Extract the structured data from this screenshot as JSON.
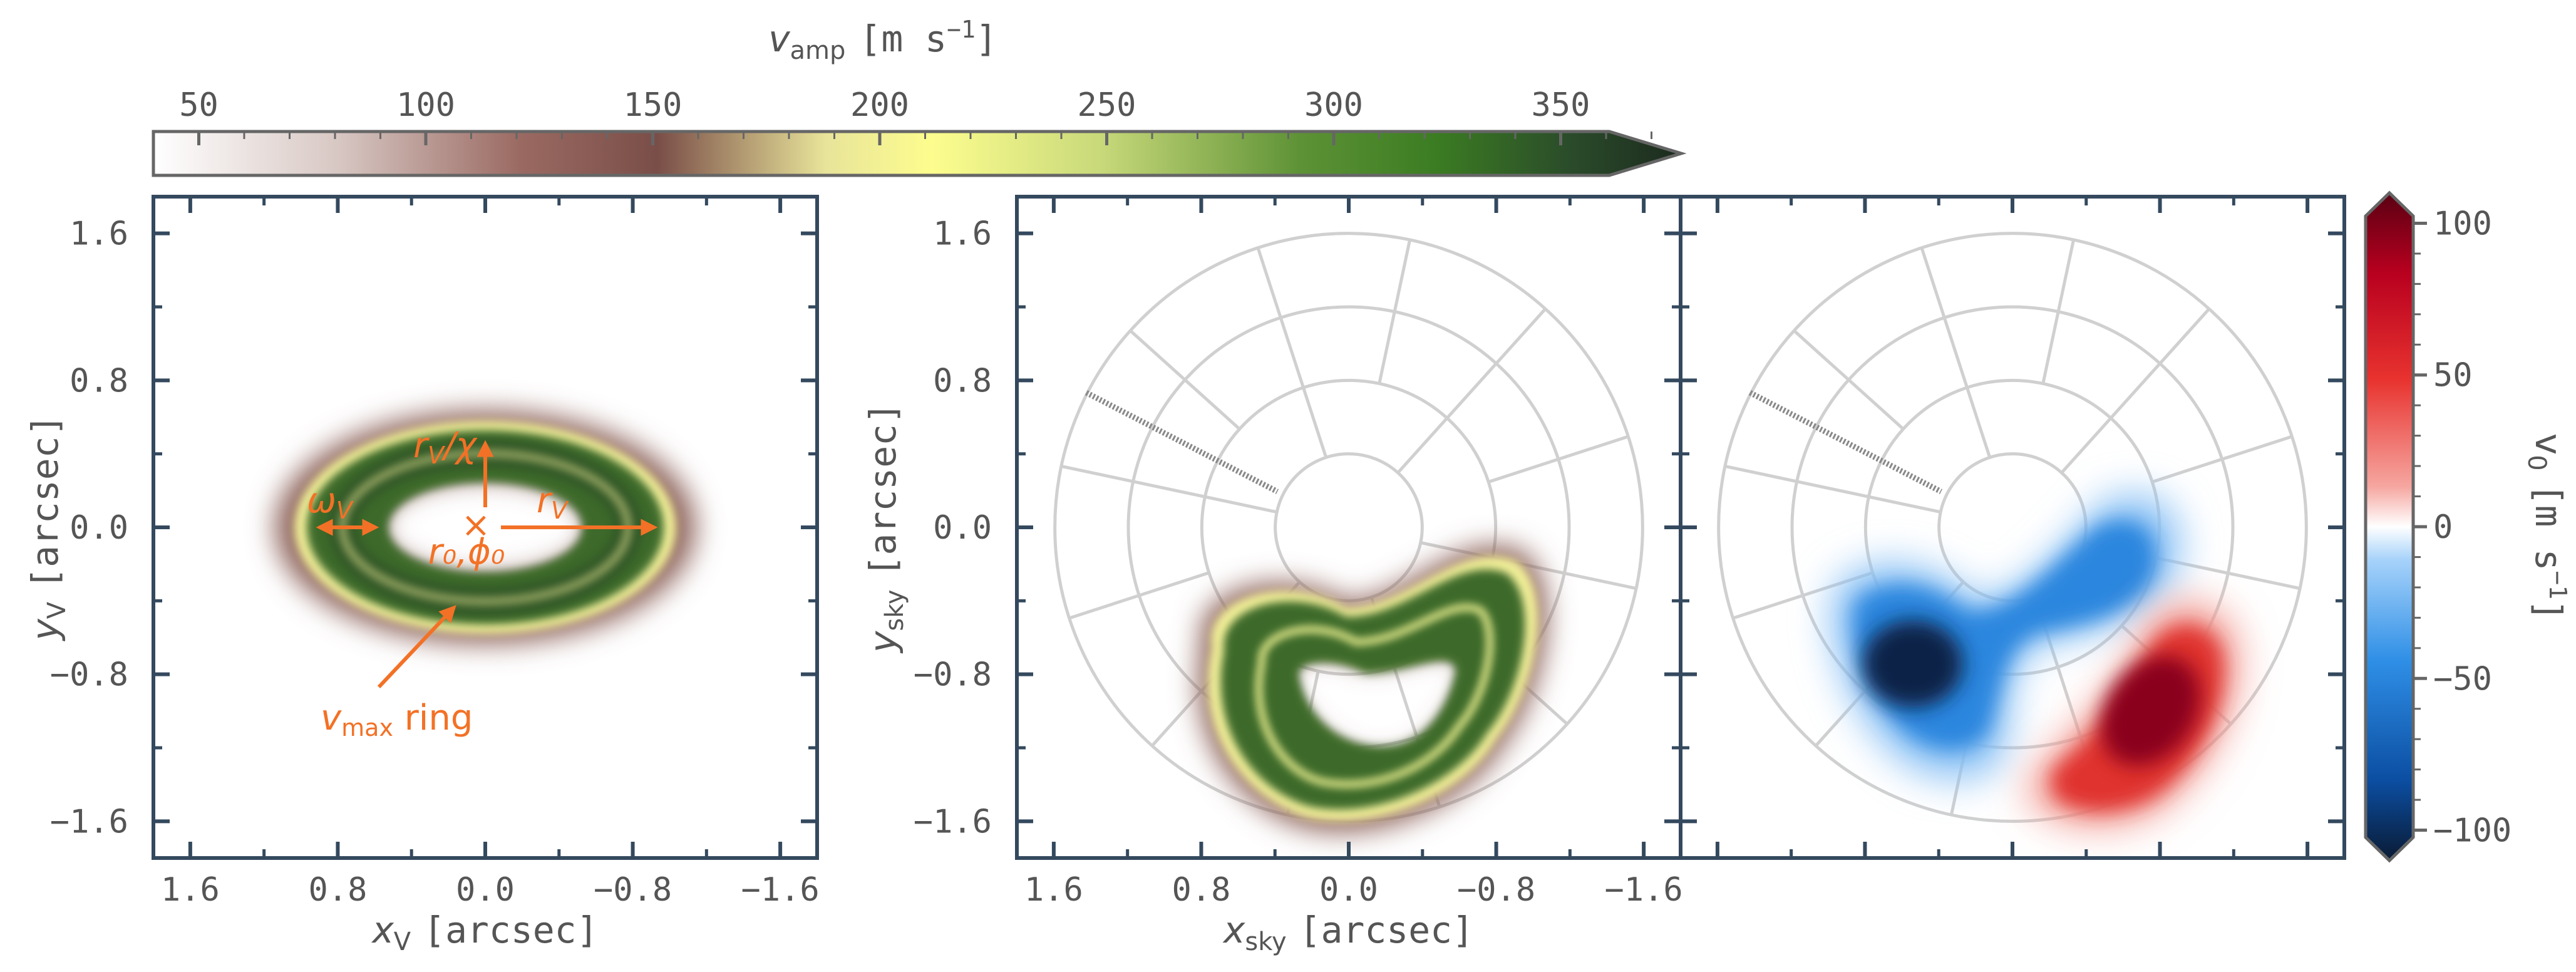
{
  "colors": {
    "frame": "#34495e",
    "tick_text": "#555555",
    "annotation": "#f37126",
    "grid": "#d0d0d0",
    "ring_cmap": [
      "#ffffff",
      "#d8c8c4",
      "#9a6a62",
      "#7a4e48",
      "#f1f0a0",
      "#fdfd8e",
      "#c8d97a",
      "#6a9a3c",
      "#3b7c22",
      "#2a4a2a",
      "#1c2a1e"
    ],
    "div_cmap": [
      "#0a1a33",
      "#0b4ea2",
      "#2f8fe6",
      "#a6d2fa",
      "#ffffff",
      "#f6a6a0",
      "#e8332f",
      "#b8001f",
      "#5a0013"
    ]
  },
  "top_colorbar": {
    "label_sym": "v",
    "label_sub": "amp",
    "label_unit": "[m s",
    "label_unit_exp": "−1",
    "label_unit_close": "]",
    "ticks": [
      "50",
      "100",
      "150",
      "200",
      "250",
      "300",
      "350"
    ]
  },
  "right_colorbar": {
    "label": "v",
    "label_sub": "0",
    "label_unit": "[m s",
    "label_unit_exp": "−1",
    "label_unit_close": "]",
    "ticks": [
      "100",
      "50",
      "0",
      "−50",
      "−100"
    ]
  },
  "panel1": {
    "xlabel_sym": "x",
    "xlabel_sub": "V",
    "xlabel_unit": "[arcsec]",
    "ylabel_sym": "y",
    "ylabel_sub": "V",
    "ylabel_unit": "[arcsec]",
    "xticks": [
      "1.6",
      "0.8",
      "0.0",
      "−0.8",
      "−1.6"
    ],
    "yticks": [
      "1.6",
      "0.8",
      "0.0",
      "−0.8",
      "−1.6"
    ],
    "ann_rv_chi_main": "r",
    "ann_rv_chi_sub": "V",
    "ann_rv_chi_tail": "/χ",
    "ann_omega_main": "ω",
    "ann_omega_sub": "V",
    "ann_rv_main": "r",
    "ann_rv_sub": "V",
    "ann_center": "r₀,ϕ₀",
    "ann_vmax_main": "v",
    "ann_vmax_sub": "max",
    "ann_vmax_tail": " ring"
  },
  "panel2": {
    "xlabel_sym": "x",
    "xlabel_sub": "sky",
    "xlabel_unit": "[arcsec]",
    "ylabel_sym": "y",
    "ylabel_sub": "sky",
    "ylabel_unit": "[arcsec]",
    "xticks": [
      "1.6",
      "0.8",
      "0.0",
      "−0.8",
      "−1.6"
    ],
    "yticks": [
      "1.6",
      "0.8",
      "0.0",
      "−0.8",
      "−1.6"
    ]
  },
  "chart_data": [
    {
      "type": "heatmap",
      "colorbar_ticks": [
        50,
        100,
        150,
        200,
        250,
        300,
        350
      ],
      "xlim": [
        1.8,
        -1.8
      ],
      "ylim": [
        -1.8,
        1.8
      ],
      "xticks": [
        1.6,
        0.8,
        0.0,
        -0.8,
        -1.6
      ],
      "yticks": [
        1.6,
        0.8,
        0.0,
        -0.8,
        -1.6
      ],
      "ring": {
        "center": [
          0.0,
          0.0
        ],
        "outer_semi_axes": [
          1.25,
          0.6
        ],
        "inner_semi_axes": [
          0.65,
          0.28
        ]
      }
    },
    {
      "type": "heatmap",
      "xlim": [
        1.8,
        -1.8
      ],
      "ylim": [
        -1.8,
        1.8
      ],
      "xticks": [
        1.6,
        0.8,
        0.0,
        -0.8,
        -1.6
      ],
      "yticks": [
        1.6,
        0.8,
        0.0,
        -0.8,
        -1.6
      ],
      "polar_grid_radii": [
        0.4,
        0.8,
        1.2,
        1.6
      ]
    },
    {
      "type": "heatmap",
      "colorbar_ticks": [
        100,
        50,
        0,
        -50,
        -100
      ],
      "colorbar_range": [
        -110,
        110
      ],
      "polar_grid_radii": [
        0.4,
        0.8,
        1.2,
        1.6
      ]
    }
  ]
}
